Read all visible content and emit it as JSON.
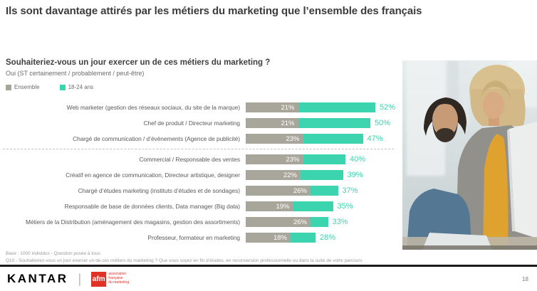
{
  "slide": {
    "title": "Ils sont davantage attirés par les métiers du marketing que l’ensemble des français",
    "page_number": "18"
  },
  "question": {
    "heading": "Souhaiteriez-vous un jour exercer un de ces métiers du marketing ?",
    "subheading": "Oui (ST certainement / probablement / peut-être)"
  },
  "legend": [
    {
      "label": "Ensemble",
      "color": "#a8a69b"
    },
    {
      "label": "18-24 ans",
      "color": "#3bd4af"
    }
  ],
  "chart_data": {
    "type": "bar",
    "orientation": "horizontal",
    "title": "Souhaiteriez-vous un jour exercer un de ces métiers du marketing ?",
    "categories": [
      "Web marketer (gestion des réseaux sociaux, du site de la marque)",
      "Chef de produit / Directeur marketing",
      "Chargé de communication / d’évènements (Agence de publicité)",
      "Commercial / Responsable des ventes",
      "Créatif en agence de communication, Directeur artistique, designer",
      "Chargé d’études marketing (instituts d’études et de sondages)",
      "Responsable de base de données clients, Data manager (Big data)",
      "Métiers de la Distribution (aménagement des magasins, gestion des assortiments)",
      "Professeur, formateur en marketing"
    ],
    "series": [
      {
        "name": "Ensemble",
        "color": "#a8a69b",
        "values": [
          21,
          21,
          23,
          23,
          22,
          26,
          19,
          26,
          18
        ]
      },
      {
        "name": "18-24 ans",
        "color": "#3bd4af",
        "values": [
          52,
          50,
          47,
          40,
          39,
          37,
          35,
          33,
          28
        ]
      }
    ],
    "value_suffix": "%",
    "separator_after_index": 2,
    "xlim": [
      0,
      55
    ],
    "grid": false,
    "legend_position": "top-left"
  },
  "footnotes": [
    "Base : 1000 individus - Question posée à tous",
    "Q10 - Souhaiteriez-vous un jour exercer un de ces métiers du marketing ? Que vous soyez en fin d’études, en reconversion professionnelle ou dans la suite de votre parcours"
  ],
  "footer": {
    "kantar_text": "KANTAR",
    "afm_square_text": "afm",
    "afm_caption_lines": [
      "association",
      "française",
      "du marketing"
    ]
  }
}
